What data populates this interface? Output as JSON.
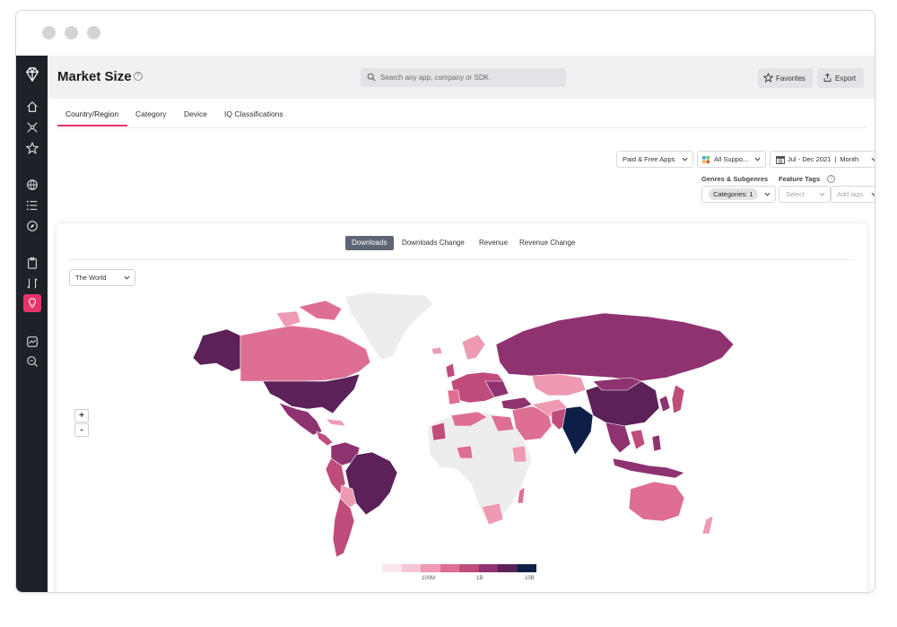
{
  "header": {
    "title": "Market Size",
    "search_placeholder": "Search any app, company or SDK",
    "favorites_label": "Favorites",
    "export_label": "Export"
  },
  "sidebar": {
    "icons": [
      "logo-gem",
      "home",
      "network",
      "star",
      "globe",
      "list",
      "compass",
      "clipboard",
      "compare",
      "lightbulb",
      "chart-box",
      "search-chart"
    ],
    "active": "lightbulb"
  },
  "tabs": [
    "Country/Region",
    "Category",
    "Device",
    "IQ Classifications"
  ],
  "filters": {
    "app_type": "Paid & Free Apps",
    "platform": "All Suppo...",
    "date_range": "Jul - Dec 2021",
    "granularity": "Month",
    "genres_label": "Genres & Subgenres",
    "categories_chip": "Categories: 1",
    "feature_tags_label": "Feature Tags",
    "select_placeholder": "Select",
    "add_tags_placeholder": "Add tags"
  },
  "metric_tabs": [
    "Downloads",
    "Downloads Change",
    "Revenue",
    "Revenue Change"
  ],
  "active_metric": "Downloads",
  "region": "The World",
  "zoom": {
    "in": "+",
    "out": "-"
  },
  "legend": {
    "ticks": [
      "100M",
      "1B",
      "10B"
    ],
    "colors": [
      "#fbe6ec",
      "#f6c6d3",
      "#ee9ab2",
      "#de6f92",
      "#c04c7b",
      "#8f3270",
      "#5b2158",
      "#0e1f47"
    ]
  },
  "colors": {
    "accent": "#e8336b",
    "sidebar": "#1d2128",
    "map_none": "#ededed",
    "map_dark_navy": "#0e1f47"
  }
}
